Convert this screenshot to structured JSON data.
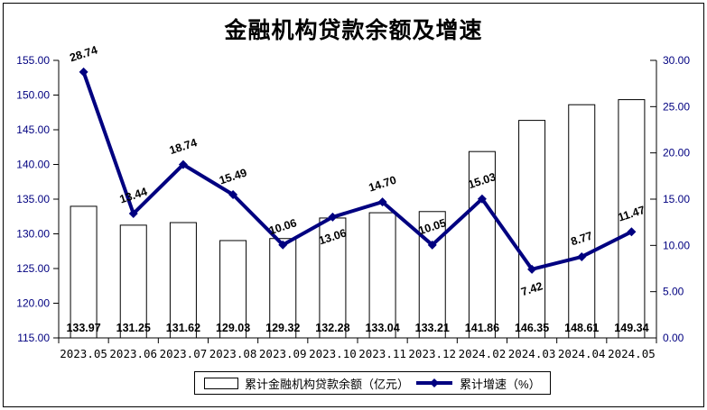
{
  "title": "金融机构贷款余额及增速",
  "colors": {
    "line": "#000080",
    "bar_fill": "#ffffff",
    "bar_border": "#000000",
    "axis": "#000000",
    "y_axis_label": "#000080",
    "x_axis_label": "#000000",
    "data_label": "#000000",
    "background": "#ffffff"
  },
  "chart_data": {
    "type": "bar",
    "subtype": "bar+line combo, dual axis",
    "title": "金融机构贷款余额及增速",
    "categories": [
      "2023.05",
      "2023.06",
      "2023.07",
      "2023.08",
      "2023.09",
      "2023.10",
      "2023.11",
      "2023.12",
      "2024.02",
      "2024.03",
      "2024.04",
      "2024.05"
    ],
    "series": [
      {
        "name": "累计金融机构贷款余额（亿元）",
        "type": "bar",
        "axis": "left",
        "values": [
          133.97,
          131.25,
          131.62,
          129.03,
          129.32,
          132.28,
          133.04,
          133.21,
          141.86,
          146.35,
          148.61,
          149.34
        ]
      },
      {
        "name": "累计增速（%）",
        "type": "line",
        "axis": "right",
        "values": [
          28.74,
          13.44,
          18.74,
          15.49,
          10.06,
          13.06,
          14.7,
          10.05,
          15.03,
          7.42,
          8.77,
          11.47
        ],
        "label_positions": [
          "above",
          "above",
          "above",
          "above",
          "above",
          "below",
          "above",
          "above",
          "above",
          "below",
          "above",
          "above"
        ]
      }
    ],
    "left_axis": {
      "min": 115,
      "max": 155,
      "step": 5,
      "tick_labels": [
        "155.00",
        "150.00",
        "145.00",
        "140.00",
        "135.00",
        "130.00",
        "125.00",
        "120.00",
        "115.00"
      ]
    },
    "right_axis": {
      "min": 0,
      "max": 30,
      "step": 5,
      "tick_labels": [
        "30.00",
        "25.00",
        "20.00",
        "15.00",
        "10.00",
        "5.00",
        "0.00"
      ]
    },
    "grid": "off",
    "legend_position": "bottom-center"
  },
  "legend": {
    "bar_label": "累计金融机构贷款余额（亿元）",
    "line_label": "累计增速（%）"
  }
}
